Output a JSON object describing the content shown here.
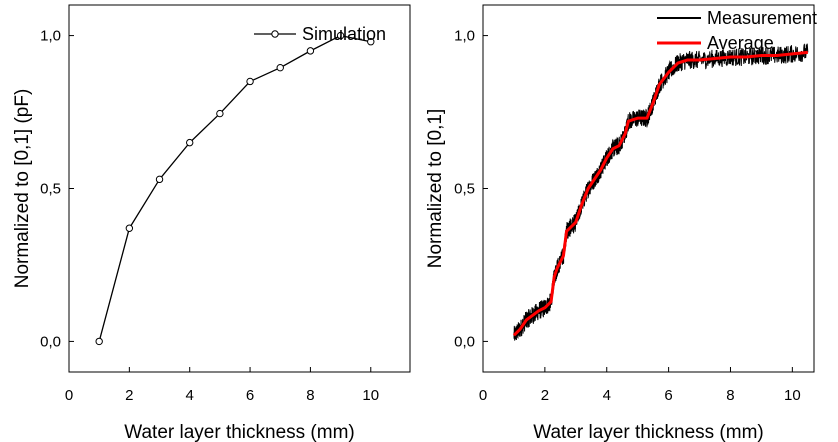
{
  "chart_data": [
    {
      "type": "line",
      "xlabel": "Water layer thickness (mm)",
      "ylabel": "Normalized to [0,1] (pF)",
      "xlim": [
        0,
        11.3
      ],
      "ylim": [
        -0.1,
        1.1
      ],
      "xticks": [
        0,
        2,
        4,
        6,
        8,
        10
      ],
      "xtick_labels": [
        "0",
        "2",
        "4",
        "6",
        "8",
        "10"
      ],
      "yticks": [
        0,
        0.5,
        1
      ],
      "ytick_labels": [
        "0,0",
        "0,5",
        "1,0"
      ],
      "legend_position": "top-right",
      "grid": false,
      "series": [
        {
          "name": "Simulation",
          "color": "#000000",
          "marker": "open-circle",
          "x": [
            1,
            2,
            3,
            4,
            5,
            6,
            7,
            8,
            9,
            10
          ],
          "y": [
            0.0,
            0.37,
            0.53,
            0.65,
            0.745,
            0.85,
            0.895,
            0.95,
            1.0,
            0.98
          ]
        }
      ]
    },
    {
      "type": "line",
      "xlabel": "Water layer thickness (mm)",
      "ylabel": "Normalized to [0,1]",
      "xlim": [
        0,
        10.7
      ],
      "ylim": [
        -0.1,
        1.1
      ],
      "xticks": [
        0,
        2,
        4,
        6,
        8,
        10
      ],
      "xtick_labels": [
        "0",
        "2",
        "4",
        "6",
        "8",
        "10"
      ],
      "yticks": [
        0,
        0.5,
        1
      ],
      "ytick_labels": [
        "0,0",
        "0,5",
        "1,0"
      ],
      "legend_position": "top-right",
      "grid": false,
      "series": [
        {
          "name": "Measurement",
          "color": "#000000",
          "noise_amplitude": 0.03,
          "x": [
            1.0,
            1.2,
            1.4,
            1.6,
            1.8,
            2.0,
            2.2,
            2.3,
            2.4,
            2.6,
            2.7,
            2.8,
            3.0,
            3.2,
            3.4,
            3.6,
            3.8,
            4.0,
            4.2,
            4.4,
            4.6,
            4.7,
            5.0,
            5.3,
            5.5,
            5.7,
            6.0,
            6.3,
            6.6,
            7.0,
            7.5,
            8.0,
            8.5,
            9.0,
            9.5,
            10.0,
            10.5
          ],
          "y": [
            0.02,
            0.04,
            0.07,
            0.085,
            0.1,
            0.11,
            0.13,
            0.21,
            0.24,
            0.28,
            0.36,
            0.37,
            0.39,
            0.45,
            0.5,
            0.53,
            0.56,
            0.6,
            0.63,
            0.64,
            0.68,
            0.72,
            0.73,
            0.73,
            0.78,
            0.84,
            0.88,
            0.91,
            0.92,
            0.92,
            0.925,
            0.93,
            0.93,
            0.935,
            0.935,
            0.94,
            0.945
          ]
        },
        {
          "name": "Average",
          "color": "#ff0000",
          "x": [
            1.0,
            1.2,
            1.4,
            1.6,
            1.8,
            2.0,
            2.2,
            2.3,
            2.4,
            2.6,
            2.7,
            2.8,
            3.0,
            3.2,
            3.4,
            3.6,
            3.8,
            4.0,
            4.2,
            4.4,
            4.6,
            4.7,
            5.0,
            5.3,
            5.5,
            5.7,
            6.0,
            6.3,
            6.6,
            7.0,
            7.5,
            8.0,
            8.5,
            9.0,
            9.5,
            10.0,
            10.5
          ],
          "y": [
            0.02,
            0.04,
            0.07,
            0.085,
            0.1,
            0.11,
            0.13,
            0.21,
            0.24,
            0.28,
            0.36,
            0.37,
            0.39,
            0.45,
            0.5,
            0.53,
            0.56,
            0.6,
            0.63,
            0.64,
            0.68,
            0.72,
            0.73,
            0.73,
            0.78,
            0.84,
            0.88,
            0.91,
            0.92,
            0.92,
            0.925,
            0.93,
            0.93,
            0.935,
            0.935,
            0.94,
            0.945
          ]
        }
      ]
    }
  ]
}
